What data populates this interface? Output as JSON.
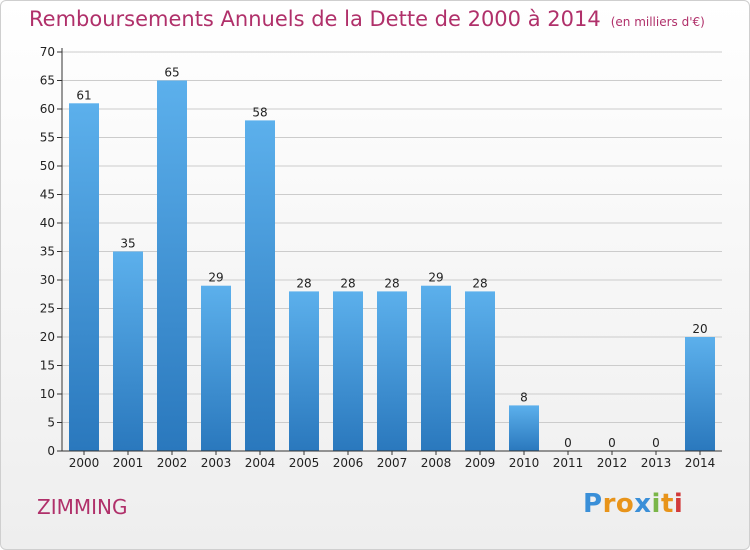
{
  "title": "Remboursements Annuels de la Dette de 2000 à 2014",
  "unit_note": "(en milliers d'€)",
  "commune": "ZIMMING",
  "brand": {
    "text": "Proxiti",
    "letters": [
      "P",
      "r",
      "o",
      "x",
      "i",
      "t",
      "i"
    ],
    "colors": [
      "#3a8fd8",
      "#e8941a",
      "#e8941a",
      "#3a8fd8",
      "#7ab648",
      "#e8941a",
      "#d23a3a"
    ]
  },
  "colors": {
    "title": "#b0306a",
    "bar_top": "#5cb0ec",
    "bar_bottom": "#2a78bd",
    "grid": "#cccccc",
    "axis": "#333333"
  },
  "chart_data": {
    "type": "bar",
    "categories": [
      "2000",
      "2001",
      "2002",
      "2003",
      "2004",
      "2005",
      "2006",
      "2007",
      "2008",
      "2009",
      "2010",
      "2011",
      "2012",
      "2013",
      "2014"
    ],
    "values": [
      61,
      35,
      65,
      29,
      58,
      28,
      28,
      28,
      29,
      28,
      8,
      0,
      0,
      0,
      20
    ],
    "data_labels": [
      "61",
      "35",
      "65",
      "29",
      "58",
      "28",
      "28",
      "28",
      "29",
      "28",
      "8",
      "0",
      "0",
      "0",
      "20"
    ],
    "ylim": [
      0,
      70
    ],
    "yticks": [
      0,
      5,
      10,
      15,
      20,
      25,
      30,
      35,
      40,
      45,
      50,
      55,
      60,
      65,
      70
    ],
    "ytick_labels": [
      "0",
      "5",
      "10",
      "15",
      "20",
      "25",
      "30",
      "35",
      "40",
      "45",
      "50",
      "55",
      "60",
      "65",
      "70"
    ],
    "grid": true,
    "xlabel": "",
    "ylabel": ""
  }
}
